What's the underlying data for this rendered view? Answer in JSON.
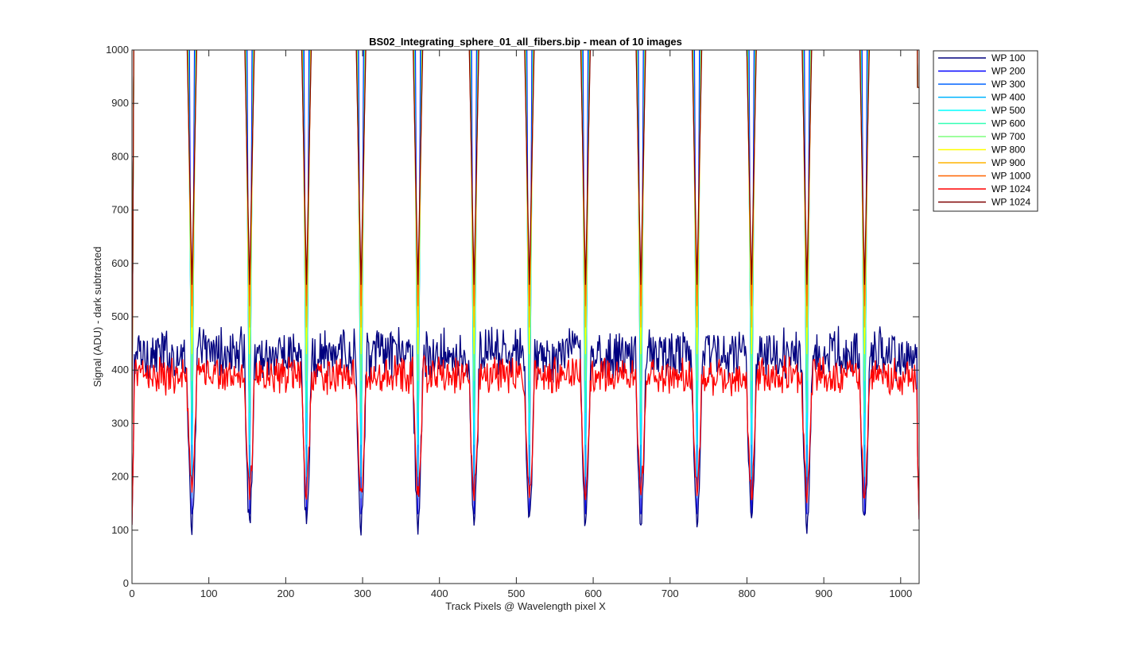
{
  "chart_data": {
    "type": "line",
    "title": "BS02_Integrating_sphere_01_all_fibers.bip - mean of 10 images",
    "xlabel": "Track Pixels @ Wavelength pixel X",
    "ylabel": "Signal (ADU) - dark subtracted",
    "xlim": [
      0,
      1024
    ],
    "ylim": [
      0,
      1000
    ],
    "xticks": [
      0,
      100,
      200,
      300,
      400,
      500,
      600,
      700,
      800,
      900,
      1000
    ],
    "yticks": [
      0,
      100,
      200,
      300,
      400,
      500,
      600,
      700,
      800,
      900,
      1000
    ],
    "grid": false,
    "legend_position": "outside-top-right",
    "fiber_centers": [
      78,
      153,
      227,
      298,
      372,
      445,
      517,
      590,
      662,
      735,
      806,
      878,
      953
    ],
    "series": [
      {
        "name": "WP 100",
        "color": "#00007f",
        "baseline": 430,
        "noise": 40,
        "dip": 90,
        "width": 3
      },
      {
        "name": "WP 200",
        "color": "#0000ff",
        "baseline": 1000,
        "noise": 0,
        "dip": 130,
        "width": 4
      },
      {
        "name": "WP 300",
        "color": "#0064ff",
        "baseline": 1000,
        "noise": 0,
        "dip": 160,
        "width": 5
      },
      {
        "name": "WP 400",
        "color": "#00b4ff",
        "baseline": 1000,
        "noise": 0,
        "dip": 200,
        "width": 5.5
      },
      {
        "name": "WP 500",
        "color": "#00ffff",
        "baseline": 1000,
        "noise": 0,
        "dip": 260,
        "width": 6
      },
      {
        "name": "WP 600",
        "color": "#32ffb4",
        "baseline": 1000,
        "noise": 0,
        "dip": 320,
        "width": 6.5
      },
      {
        "name": "WP 700",
        "color": "#7dff7d",
        "baseline": 1000,
        "noise": 0,
        "dip": 380,
        "width": 7
      },
      {
        "name": "WP 800",
        "color": "#ffff00",
        "baseline": 1000,
        "noise": 0,
        "dip": 430,
        "width": 7.5
      },
      {
        "name": "WP 900",
        "color": "#ffb400",
        "baseline": 1000,
        "noise": 0,
        "dip": 480,
        "width": 8
      },
      {
        "name": "WP 1000",
        "color": "#ff6400",
        "baseline": 1000,
        "noise": 0,
        "dip": 520,
        "width": 8.5
      },
      {
        "name": "WP 1024",
        "color": "#ff0000",
        "baseline": 390,
        "noise": 28,
        "dip": 150,
        "width": 3
      },
      {
        "name": "WP 1024",
        "color": "#7f0000",
        "baseline": 1000,
        "noise": 0,
        "dip": 560,
        "width": 9
      }
    ]
  }
}
